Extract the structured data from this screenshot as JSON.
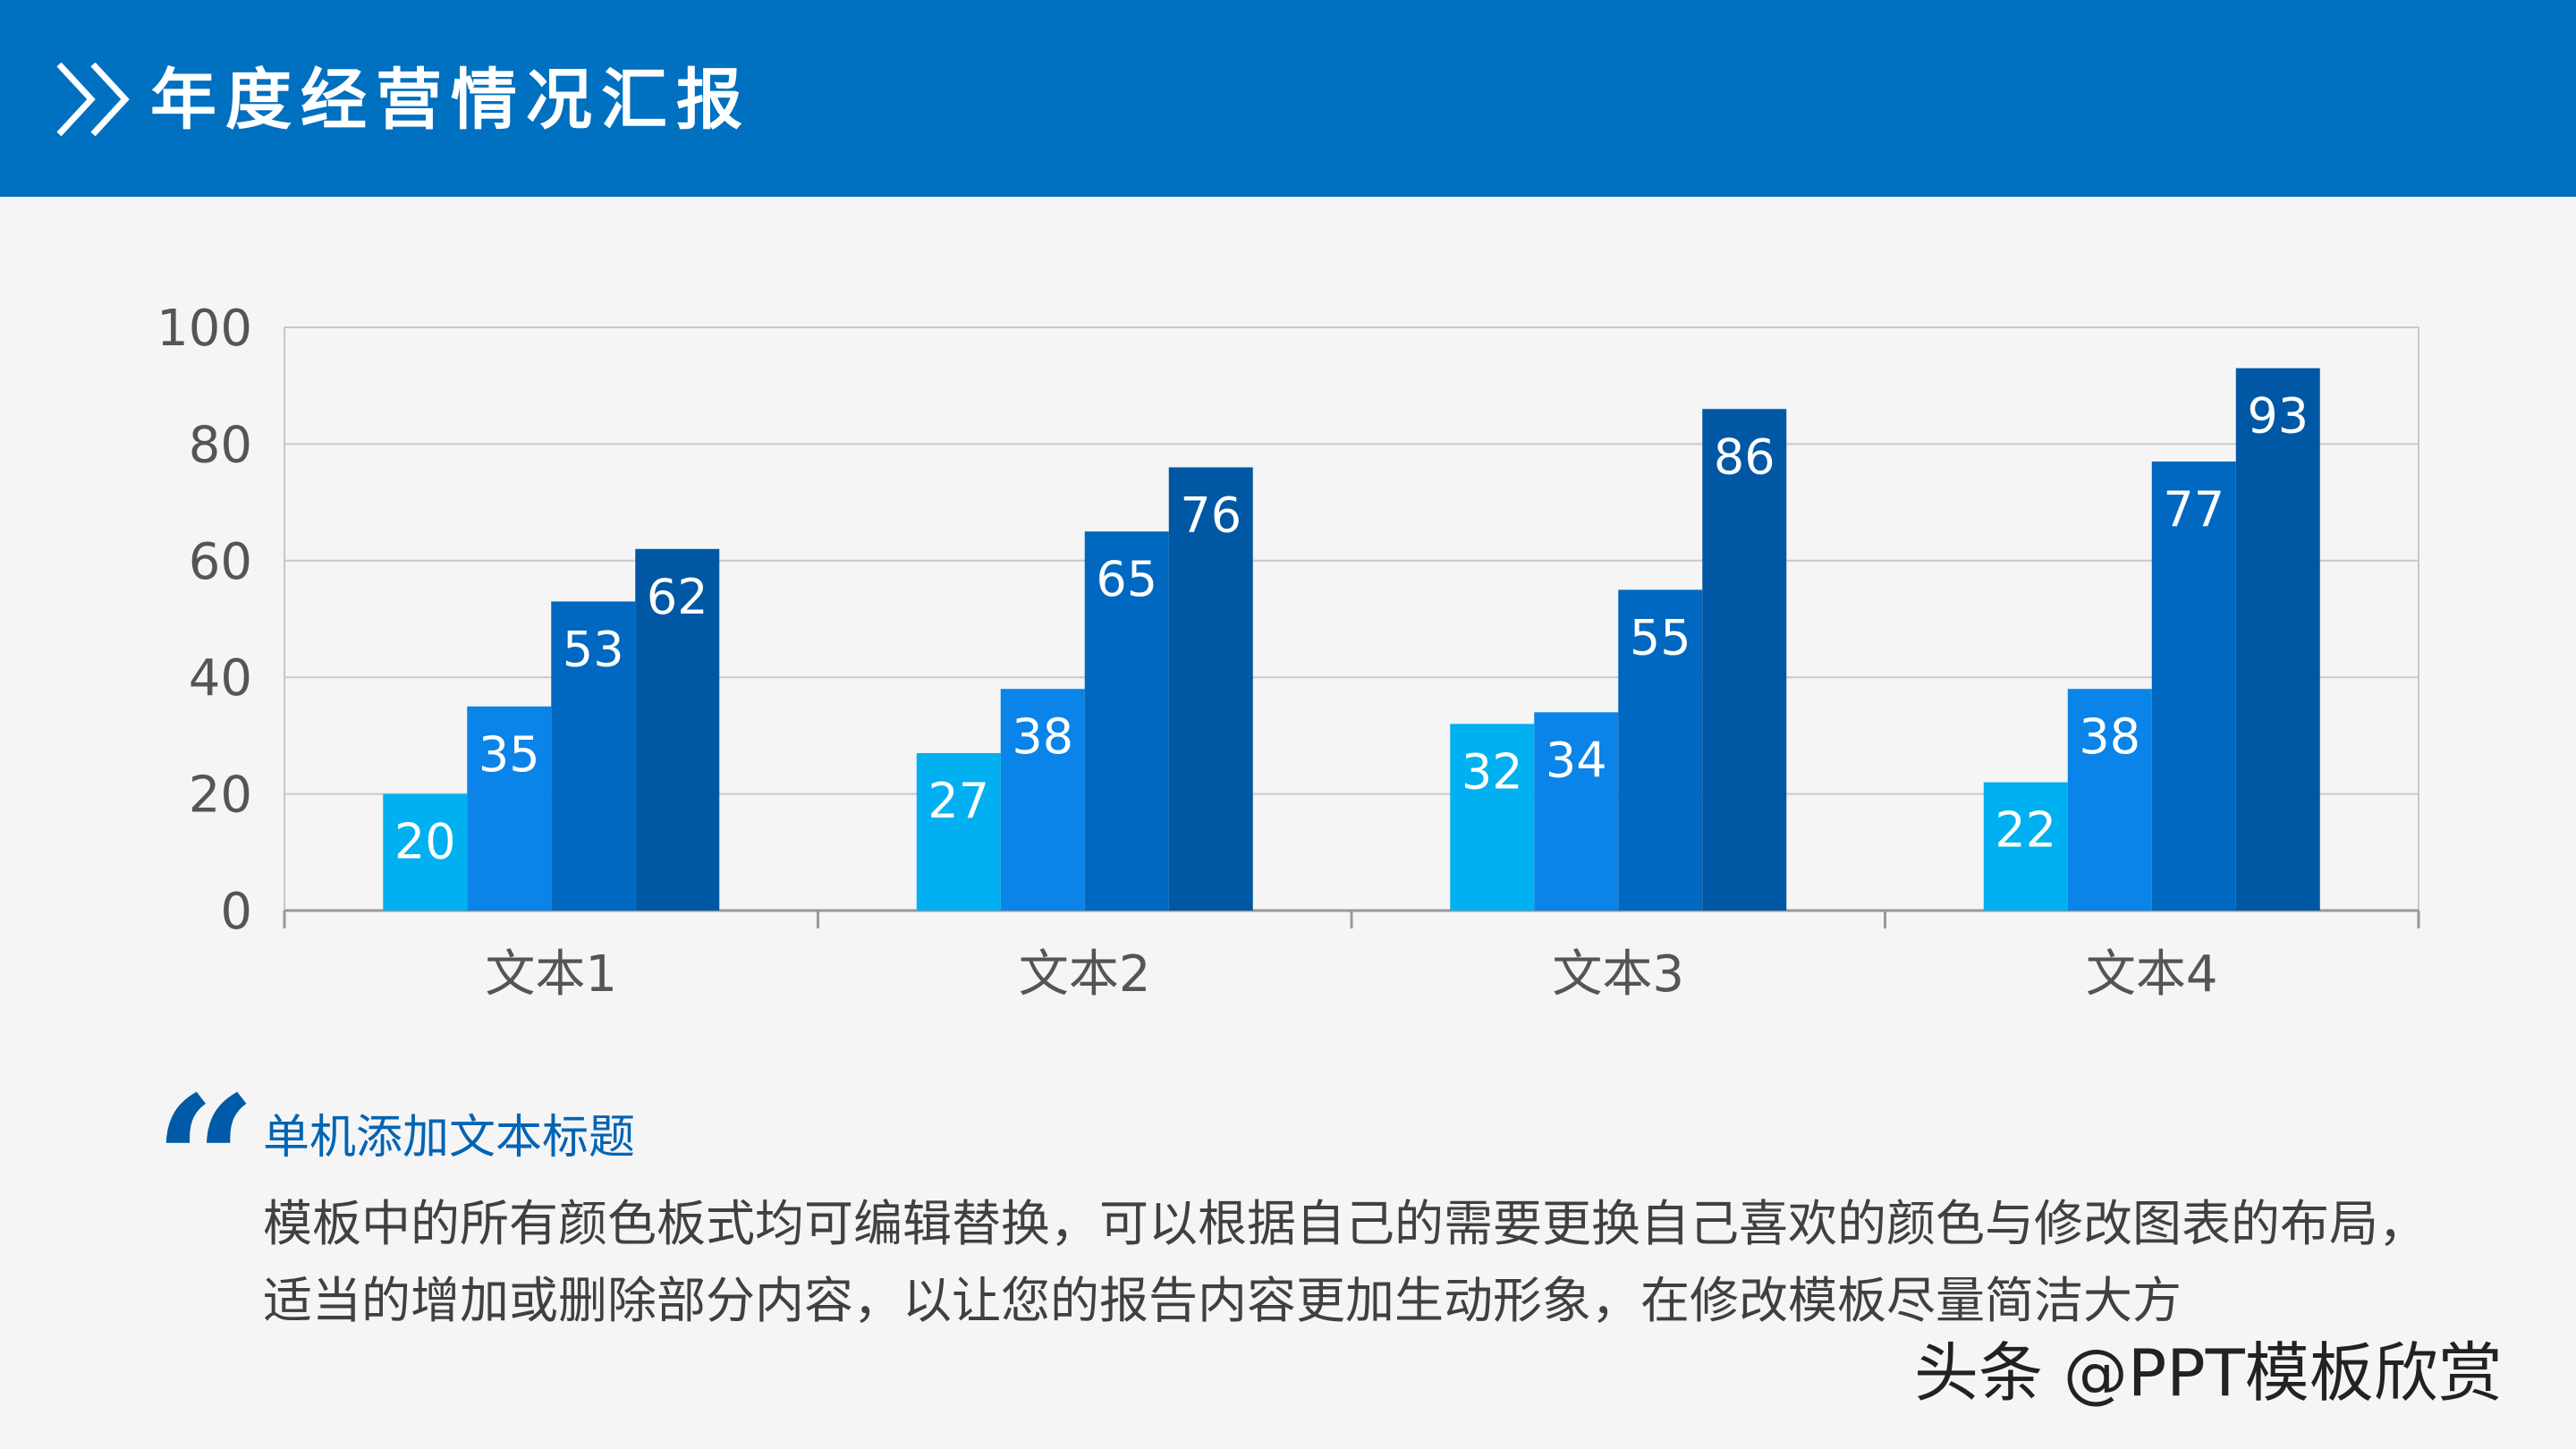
{
  "header": {
    "title": "年度经营情况汇报",
    "icon": "double-chevron-right-icon",
    "color": "#0070c0"
  },
  "chart_data": {
    "type": "bar",
    "categories": [
      "文本1",
      "文本2",
      "文本3",
      "文本4"
    ],
    "series": [
      {
        "values": [
          20,
          27,
          32,
          22
        ],
        "color": "#00b0f0"
      },
      {
        "values": [
          35,
          38,
          34,
          38
        ],
        "color": "#0a84e8"
      },
      {
        "values": [
          53,
          65,
          55,
          77
        ],
        "color": "#0068c0"
      },
      {
        "values": [
          62,
          76,
          86,
          93
        ],
        "color": "#0058a4"
      }
    ],
    "ylim": [
      0,
      100
    ],
    "yticks": [
      "0",
      "20",
      "40",
      "60",
      "80",
      "100"
    ],
    "grid": true,
    "data_labels": true
  },
  "text": {
    "subtitle": "单机添加文本标题",
    "line1": "模板中的所有颜色板式均可编辑替换，可以根据自己的需要更换自己喜欢的颜色与修改图表的布局，",
    "line2": "适当的增加或删除部分内容，以让您的报告内容更加生动形象，在修改模板尽量简洁大方"
  },
  "watermark": "头条 @PPT模板欣赏"
}
